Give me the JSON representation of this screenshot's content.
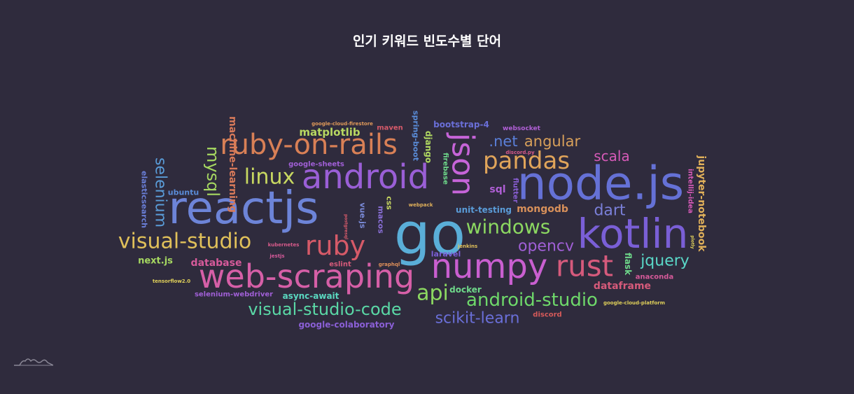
{
  "header": {
    "title": "인기 키워드 빈도수별 단어"
  },
  "chart_data": {
    "type": "wordcloud",
    "title": "인기 키워드 빈도수별 단어",
    "words": [
      {
        "text": "go",
        "weight": 78,
        "color": "#5aaed8"
      },
      {
        "text": "node.js",
        "weight": 62,
        "color": "#6571d6"
      },
      {
        "text": "reactjs",
        "weight": 60,
        "color": "#6d84d8"
      },
      {
        "text": "kotlin",
        "weight": 56,
        "color": "#7a5fd6"
      },
      {
        "text": "numpy",
        "weight": 47,
        "color": "#c95fd0"
      },
      {
        "text": "android",
        "weight": 47,
        "color": "#9a5fd6"
      },
      {
        "text": "web-scraping",
        "weight": 44,
        "color": "#d65fa7"
      },
      {
        "text": "json",
        "weight": 42,
        "color": "#c664d8"
      },
      {
        "text": "rust",
        "weight": 40,
        "color": "#d65a7c"
      },
      {
        "text": "ruby-on-rails",
        "weight": 38,
        "color": "#d98056"
      },
      {
        "text": "ruby",
        "weight": 37,
        "color": "#d65a68"
      },
      {
        "text": "pandas",
        "weight": 33,
        "color": "#e0a45a"
      },
      {
        "text": "windows",
        "weight": 28,
        "color": "#8cd861"
      },
      {
        "text": "linux",
        "weight": 28,
        "color": "#c8d861"
      },
      {
        "text": "visual-studio",
        "weight": 28,
        "color": "#e0c05a"
      },
      {
        "text": "api",
        "weight": 28,
        "color": "#8cd861"
      },
      {
        "text": "android-studio",
        "weight": 26,
        "color": "#6ed86a"
      },
      {
        "text": "visual-studio-code",
        "weight": 24,
        "color": "#5ad8a6"
      },
      {
        "text": "mysql",
        "weight": 24,
        "color": "#a6d861"
      },
      {
        "text": "selenium",
        "weight": 22,
        "color": "#5a9cd8"
      },
      {
        "text": "scikit-learn",
        "weight": 22,
        "color": "#6a6fd8"
      },
      {
        "text": "opencv",
        "weight": 22,
        "color": "#a05fd6"
      },
      {
        "text": "jquery",
        "weight": 22,
        "color": "#5ad8c8"
      },
      {
        "text": "dart",
        "weight": 22,
        "color": "#7a7fd8"
      },
      {
        "text": "angular",
        "weight": 21,
        "color": "#d8a05a"
      },
      {
        "text": ".net",
        "weight": 21,
        "color": "#5a7fd8"
      },
      {
        "text": "scala",
        "weight": 20,
        "color": "#d65ab8"
      },
      {
        "text": "matplotlib",
        "weight": 15,
        "color": "#b8d861"
      },
      {
        "text": "machine-learning",
        "weight": 14,
        "color": "#d87a5a"
      },
      {
        "text": "jupyter-notebook",
        "weight": 14,
        "color": "#e0b05a"
      },
      {
        "text": "dataframe",
        "weight": 14,
        "color": "#d65a7a"
      },
      {
        "text": "sql",
        "weight": 14,
        "color": "#b05fd6"
      },
      {
        "text": "mongodb",
        "weight": 14,
        "color": "#d8905a"
      },
      {
        "text": "database",
        "weight": 14,
        "color": "#d65a9a"
      },
      {
        "text": "next.js",
        "weight": 13,
        "color": "#a6d861"
      },
      {
        "text": "bootstrap-4",
        "weight": 12,
        "color": "#6a6fd8"
      },
      {
        "text": "google-colaboratory",
        "weight": 12,
        "color": "#8a5fd6"
      },
      {
        "text": "async-await",
        "weight": 12,
        "color": "#5ad8c0"
      },
      {
        "text": "unit-testing",
        "weight": 12,
        "color": "#5a9cd8"
      },
      {
        "text": "flask",
        "weight": 12,
        "color": "#6ed88a"
      },
      {
        "text": "django",
        "weight": 12,
        "color": "#b0d861"
      },
      {
        "text": "docker",
        "weight": 12,
        "color": "#6ed88a"
      },
      {
        "text": "spring-boot",
        "weight": 11,
        "color": "#5a8cd8"
      },
      {
        "text": "laravel",
        "weight": 11,
        "color": "#7a5fd6"
      },
      {
        "text": "vue.js",
        "weight": 11,
        "color": "#7a8ad8"
      },
      {
        "text": "macos",
        "weight": 11,
        "color": "#8a6fd8"
      },
      {
        "text": "css",
        "weight": 11,
        "color": "#c8d861"
      },
      {
        "text": "elasticsearch",
        "weight": 11,
        "color": "#6a7fd8"
      },
      {
        "text": "ubuntu",
        "weight": 11,
        "color": "#5a8cd8"
      },
      {
        "text": "eslint",
        "weight": 10,
        "color": "#d65a7a"
      },
      {
        "text": "anaconda",
        "weight": 10,
        "color": "#d65a9a"
      },
      {
        "text": "discord",
        "weight": 10,
        "color": "#d65a5a"
      },
      {
        "text": "intellij-idea",
        "weight": 10,
        "color": "#d65ab8"
      },
      {
        "text": "google-sheets",
        "weight": 10,
        "color": "#a05fd6"
      },
      {
        "text": "firebase",
        "weight": 10,
        "color": "#6ed88a"
      },
      {
        "text": "flutter",
        "weight": 10,
        "color": "#8a5fd6"
      },
      {
        "text": "selenium-webdriver",
        "weight": 10,
        "color": "#a05fd6"
      },
      {
        "text": "maven",
        "weight": 10,
        "color": "#d65a6a"
      },
      {
        "text": "websocket",
        "weight": 9,
        "color": "#b05fd6"
      },
      {
        "text": "google-cloud-firestore",
        "weight": 7,
        "color": "#e09a5a"
      },
      {
        "text": "discord.py",
        "weight": 7,
        "color": "#d65a8a"
      },
      {
        "text": "webpack",
        "weight": 7,
        "color": "#e0b05a"
      },
      {
        "text": "kubernetes",
        "weight": 7,
        "color": "#d65a8a"
      },
      {
        "text": "jestjs",
        "weight": 7,
        "color": "#d65a9a"
      },
      {
        "text": "graphql",
        "weight": 7,
        "color": "#e0905a"
      },
      {
        "text": "jenkins",
        "weight": 7,
        "color": "#e0c05a"
      },
      {
        "text": "postgresql",
        "weight": 6,
        "color": "#d65a6a"
      },
      {
        "text": "tensorflow2.0",
        "weight": 7,
        "color": "#e0d05a"
      },
      {
        "text": "google-cloud-platform",
        "weight": 7,
        "color": "#e0d05a"
      },
      {
        "text": "plotly",
        "weight": 6,
        "color": "#e0d05a"
      }
    ]
  }
}
